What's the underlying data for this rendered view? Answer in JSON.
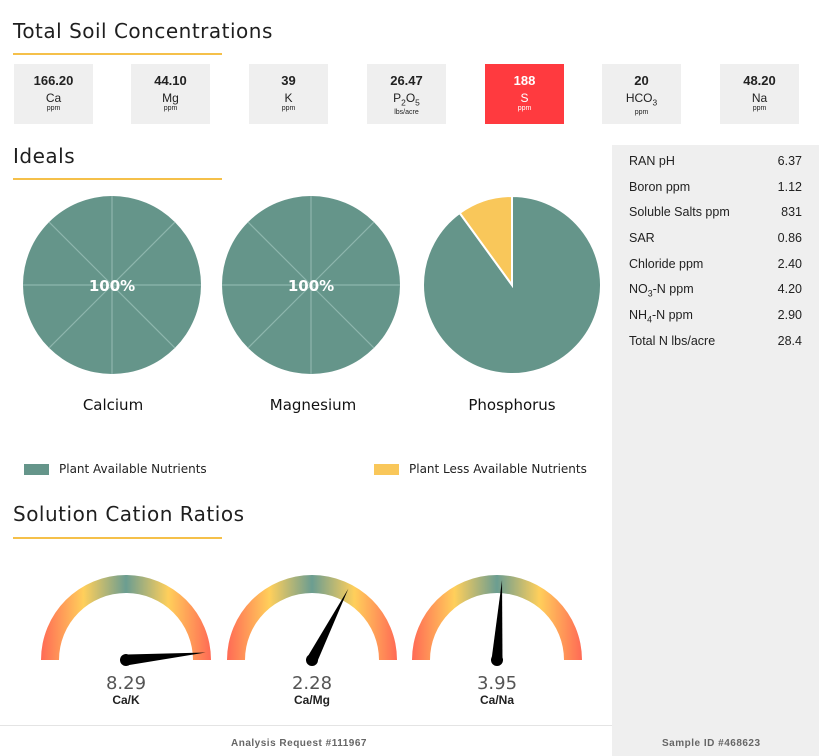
{
  "sections": {
    "total_soil": "Total Soil Concentrations",
    "ideals": "Ideals",
    "cation_ratios": "Solution Cation Ratios"
  },
  "concentrations": [
    {
      "value": "166.20",
      "name": "Ca",
      "unit": "ppm",
      "alert": false
    },
    {
      "value": "44.10",
      "name": "Mg",
      "unit": "ppm",
      "alert": false
    },
    {
      "value": "39",
      "name": "K",
      "unit": "ppm",
      "alert": false
    },
    {
      "value": "26.47",
      "name": "P2O5",
      "unit": "lbs/acre",
      "alert": false
    },
    {
      "value": "188",
      "name": "S",
      "unit": "ppm",
      "alert": true
    },
    {
      "value": "20",
      "name": "HCO3",
      "unit": "ppm",
      "alert": false
    },
    {
      "value": "48.20",
      "name": "Na",
      "unit": "ppm",
      "alert": false
    }
  ],
  "side_panel": [
    {
      "label": "RAN pH",
      "value": "6.37"
    },
    {
      "label": "Boron ppm",
      "value": "1.12"
    },
    {
      "label": "Soluble Salts ppm",
      "value": "831"
    },
    {
      "label": "SAR",
      "value": "0.86"
    },
    {
      "label": "Chloride ppm",
      "value": "2.40"
    },
    {
      "label": "NO3-N ppm",
      "value": "4.20"
    },
    {
      "label": "NH4-N ppm",
      "value": "2.90"
    },
    {
      "label": "Total N lbs/acre",
      "value": "28.4"
    }
  ],
  "chart_data": [
    {
      "type": "pie",
      "title": "Calcium",
      "slices": [
        {
          "name": "Plant Available Nutrients",
          "value": 100
        }
      ],
      "center_label": "100%"
    },
    {
      "type": "pie",
      "title": "Magnesium",
      "slices": [
        {
          "name": "Plant Available Nutrients",
          "value": 100
        }
      ],
      "center_label": "100%"
    },
    {
      "type": "pie",
      "title": "Phosphorus",
      "slices": [
        {
          "name": "Plant Available Nutrients",
          "value": 90
        },
        {
          "name": "Plant Less Available Nutrients",
          "value": 10
        }
      ],
      "center_label": ""
    }
  ],
  "legend": [
    {
      "label": "Plant Available Nutrients",
      "color": "#65958a"
    },
    {
      "label": "Plant Less Available Nutrients",
      "color": "#f9c75a"
    }
  ],
  "colors": {
    "available": "#65958a",
    "less_available": "#f9c75a",
    "alert": "#ff3a3f",
    "accent_rule": "#f5c04a"
  },
  "gauges": [
    {
      "value": "8.29",
      "label": "Ca/K",
      "level": 0.97
    },
    {
      "value": "2.28",
      "label": "Ca/Mg",
      "level": 0.65
    },
    {
      "value": "3.95",
      "label": "Ca/Na",
      "level": 0.52
    }
  ],
  "footer": {
    "request": "Analysis Request #111967",
    "sample": "Sample ID #468623"
  }
}
